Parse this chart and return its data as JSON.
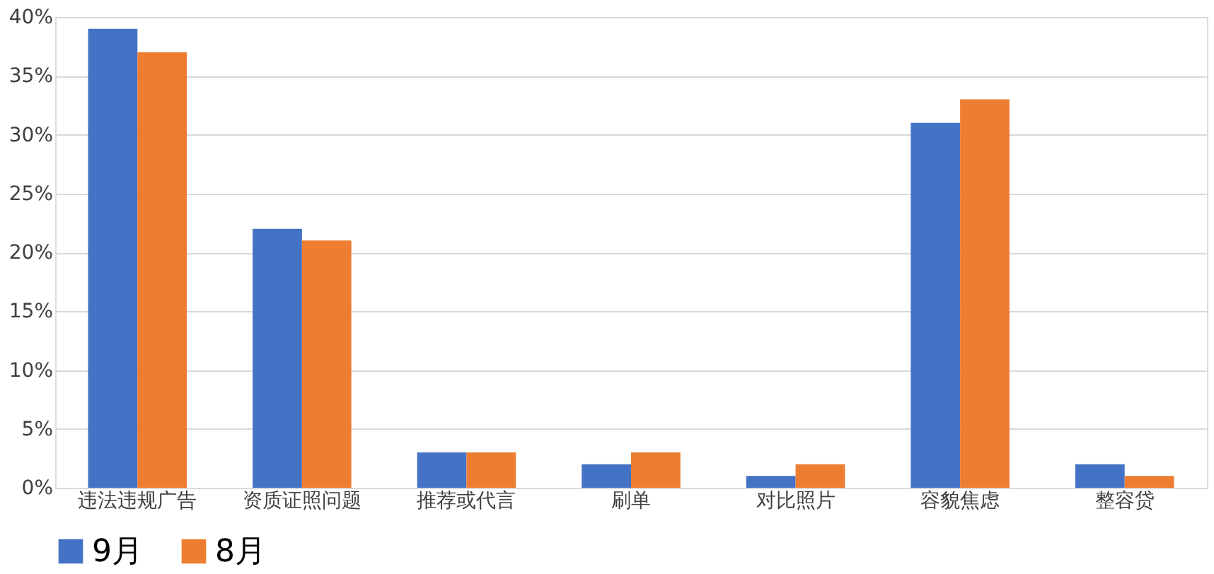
{
  "chart_data": {
    "type": "bar",
    "categories": [
      "违法违规广告",
      "资质证照问题",
      "推荐或代言",
      "刷单",
      "对比照片",
      "容貌焦虑",
      "整容贷"
    ],
    "series": [
      {
        "name": "9月",
        "color": "#4472c4",
        "values": [
          39,
          22,
          3,
          2,
          1,
          31,
          2
        ]
      },
      {
        "name": "8月",
        "color": "#ed7d31",
        "values": [
          37,
          21,
          3,
          3,
          2,
          33,
          1
        ]
      }
    ],
    "ylim": [
      0,
      40
    ],
    "yticks": [
      {
        "value": 0,
        "label": "0%"
      },
      {
        "value": 5,
        "label": "5%"
      },
      {
        "value": 10,
        "label": "10%"
      },
      {
        "value": 15,
        "label": "15%"
      },
      {
        "value": 20,
        "label": "20%"
      },
      {
        "value": 25,
        "label": "25%"
      },
      {
        "value": 30,
        "label": "30%"
      },
      {
        "value": 35,
        "label": "35%"
      },
      {
        "value": 40,
        "label": "40%"
      }
    ],
    "grid": "y",
    "legend": "bottom"
  }
}
